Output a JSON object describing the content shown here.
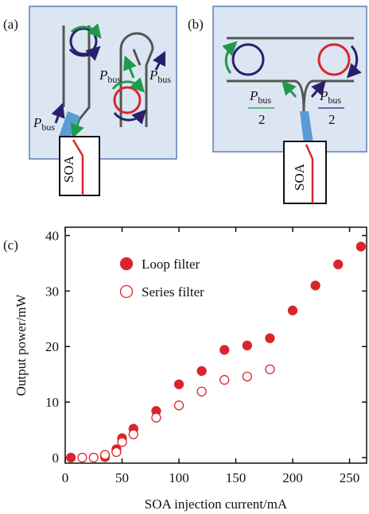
{
  "panel_a": {
    "label": "(a)",
    "soa": "SOA",
    "p_labels": [
      {
        "symbol": "P",
        "subscript": "bus"
      },
      {
        "symbol": "P",
        "subscript": "bus"
      },
      {
        "symbol": "P",
        "subscript": "bus"
      }
    ]
  },
  "panel_b": {
    "label": "(b)",
    "soa": "SOA",
    "p_labels": [
      {
        "symbol": "P",
        "subscript": "bus",
        "denominator": "2"
      },
      {
        "symbol": "P",
        "subscript": "bus",
        "denominator": "2"
      }
    ]
  },
  "chart_data": {
    "type": "scatter",
    "label": "(c)",
    "x_label": "SOA injection current/mA",
    "y_label": "Output power/mW",
    "xlim": [
      0,
      265
    ],
    "ylim": [
      -1,
      41.5
    ],
    "xticks": [
      0,
      50,
      100,
      150,
      200,
      250
    ],
    "yticks": [
      0,
      10,
      20,
      30,
      40
    ],
    "series": [
      {
        "name": "Loop filter",
        "color": "#d9262c",
        "filled": true,
        "x": [
          5,
          35,
          45,
          50,
          60,
          80,
          100,
          120,
          140,
          160,
          180,
          200,
          220,
          240,
          260
        ],
        "values": [
          0,
          0.1,
          1.5,
          3.5,
          5.2,
          8.4,
          13.2,
          15.6,
          19.4,
          20.2,
          21.5,
          26.5,
          31,
          34.8,
          38
        ]
      },
      {
        "name": "Series filter",
        "color": "#d9262c",
        "filled": false,
        "x": [
          15,
          25,
          35,
          45,
          50,
          60,
          80,
          100,
          120,
          140,
          160,
          180
        ],
        "values": [
          0,
          0,
          0.5,
          1,
          2.8,
          4.2,
          7.2,
          9.4,
          11.9,
          14,
          14.6,
          15.9
        ]
      }
    ]
  }
}
